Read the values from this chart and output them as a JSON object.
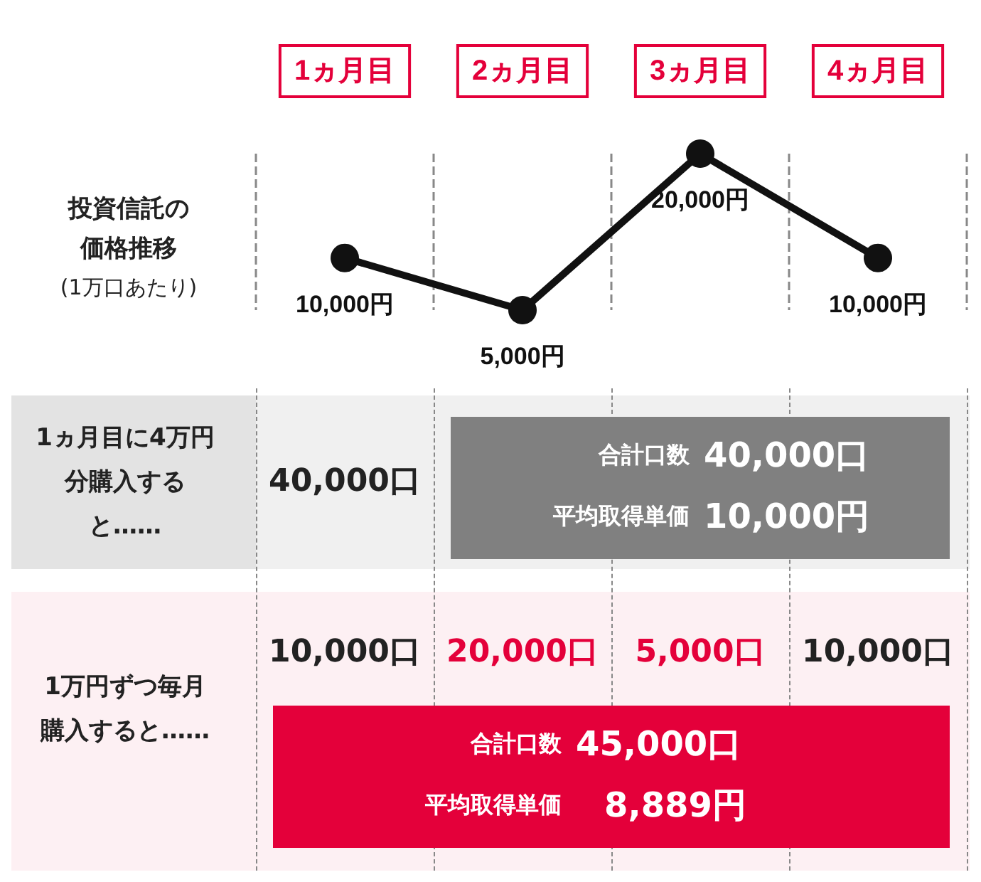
{
  "chart_data": {
    "type": "line",
    "ylabel": "投資信託の価格推移",
    "categories": [
      "1ヵ月目",
      "2ヵ月目",
      "3ヵ月目",
      "4ヵ月目"
    ],
    "series": [
      {
        "color": "#111111",
        "values": [
          10000,
          5000,
          20000,
          10000
        ],
        "value_labels": [
          "10,000円",
          "5,000円",
          "20,000円",
          "10,000円"
        ]
      }
    ],
    "marker": "circle",
    "line_style": "solid",
    "grid": "x",
    "annotations": [
      "(1万口あたり)",
      "1ヵ月目に4万円分購入すると……",
      "40,000口",
      "合計口数",
      "40,000口",
      "平均取得単価",
      "10,000円",
      "1万円ずつ毎月購入すると……",
      "10,000口",
      "20,000口",
      "5,000口",
      "10,000口",
      "合計口数",
      "45,000口",
      "平均取得単価",
      "8,889円"
    ]
  }
}
